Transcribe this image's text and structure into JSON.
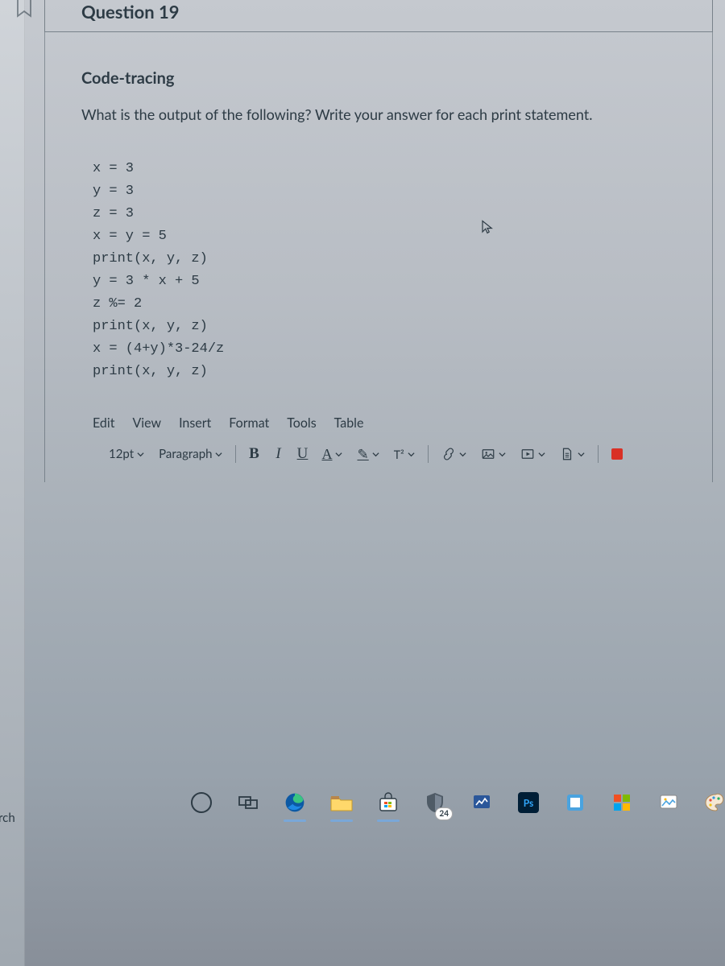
{
  "colors": {
    "text": "#2d3b45",
    "accent_red": "#d93025",
    "taskbar_underline": "#7aa7d8",
    "ps_bg": "#001e36",
    "ps_fg": "#31a8ff"
  },
  "sidebar": {
    "cut_label": "rch"
  },
  "header": {
    "title": "Question 19"
  },
  "question": {
    "section_title": "Code-tracing",
    "prompt": "What is the output of the following? Write your answer for each print statement.",
    "code_lines": [
      "x = 3",
      "y = 3",
      "z = 3",
      "x = y = 5",
      "print(x, y, z)",
      "y = 3 * x + 5",
      "z %= 2",
      "print(x, y, z)",
      "x = (4+y)*3-24/z",
      "print(x, y, z)"
    ]
  },
  "editor": {
    "menu": [
      "Edit",
      "View",
      "Insert",
      "Format",
      "Tools",
      "Table"
    ],
    "font_size": "12pt",
    "paragraph_label": "Paragraph",
    "buttons": {
      "bold": "B",
      "italic": "I",
      "underline": "U",
      "text_color": "A",
      "highlight": "✎",
      "superscript": "T²"
    }
  },
  "taskbar": {
    "file_explorer_badge": "24",
    "photoshop_label": "Ps"
  }
}
